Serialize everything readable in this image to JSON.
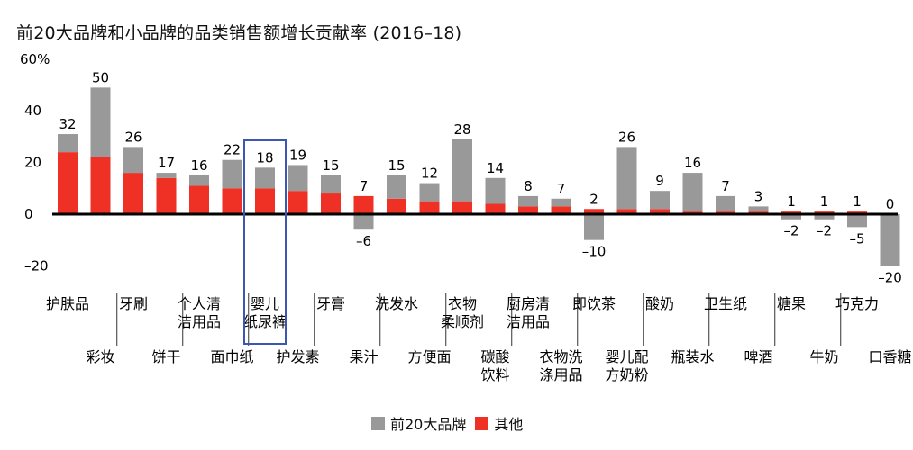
{
  "title": "前20大品牌和小品牌的品类销售额增长贡献率 (2016–18)",
  "colors": {
    "top20": "#999999",
    "others": "#ee3124",
    "highlight": "#3b56b3",
    "axis": "#000000"
  },
  "chart_data": {
    "type": "bar",
    "stacked": true,
    "title": "前20大品牌和小品牌的品类销售额增长贡献率 (2016–18)",
    "ylim": [
      -25,
      60
    ],
    "yticks": [
      -20,
      0,
      20,
      40,
      60
    ],
    "ytick_labels": [
      "–20",
      "0",
      "20",
      "40",
      "60%"
    ],
    "highlight_category": "婴儿纸尿裤",
    "categories": [
      "护肤品",
      "彩妆",
      "牙刷",
      "饼干",
      "个人清洁用品",
      "面巾纸",
      "婴儿纸尿裤",
      "护发素",
      "牙膏",
      "果汁",
      "洗发水",
      "方便面",
      "衣物柔顺剂",
      "碳酸饮料",
      "厨房清洁用品",
      "衣物洗涤用品",
      "即饮茶",
      "婴儿配方奶粉",
      "酸奶",
      "瓶装水",
      "卫生纸",
      "啤酒",
      "糖果",
      "牛奶",
      "巧克力",
      "口香糖"
    ],
    "category_labels": [
      [
        "护肤品"
      ],
      [
        "彩妆"
      ],
      [
        "牙刷"
      ],
      [
        "饼干"
      ],
      [
        "个人清",
        "洁用品"
      ],
      [
        "面巾纸"
      ],
      [
        "婴儿",
        "纸尿裤"
      ],
      [
        "护发素"
      ],
      [
        "牙膏"
      ],
      [
        "果汁"
      ],
      [
        "洗发水"
      ],
      [
        "方便面"
      ],
      [
        "衣物",
        "柔顺剂"
      ],
      [
        "碳酸",
        "饮料"
      ],
      [
        "厨房清",
        "洁用品"
      ],
      [
        "衣物洗",
        "涤用品"
      ],
      [
        "即饮茶"
      ],
      [
        "婴儿配",
        "方奶粉"
      ],
      [
        "酸奶"
      ],
      [
        "瓶装水"
      ],
      [
        "卫生纸"
      ],
      [
        "啤酒"
      ],
      [
        "糖果"
      ],
      [
        "牛奶"
      ],
      [
        "巧克力"
      ],
      [
        "口香糖"
      ]
    ],
    "series": [
      {
        "name": "前20大品牌",
        "values": [
          7,
          27,
          10,
          2,
          4,
          11,
          8,
          10,
          7,
          -6,
          9,
          7,
          24,
          10,
          4,
          3,
          -10,
          24,
          7,
          15,
          6,
          2,
          -2,
          -2,
          -5,
          -20
        ]
      },
      {
        "name": "其他",
        "values": [
          24,
          22,
          16,
          14,
          11,
          10,
          10,
          9,
          8,
          7,
          6,
          5,
          5,
          4,
          3,
          3,
          2,
          2,
          2,
          1,
          1,
          1,
          1,
          1,
          1,
          0
        ]
      }
    ],
    "totals": [
      "32",
      "50",
      "26",
      "17",
      "16",
      "22",
      "18",
      "19",
      "15",
      "7",
      "15",
      "12",
      "28",
      "14",
      "8",
      "7",
      "2",
      "26",
      "9",
      "16",
      "7",
      "3",
      "1",
      "1",
      "1",
      "0"
    ],
    "negative_labels": [
      "",
      "",
      "",
      "",
      "",
      "",
      "",
      "",
      "",
      "–6",
      "",
      "",
      "",
      "",
      "",
      "",
      "–10",
      "",
      "",
      "",
      "",
      "",
      "–2",
      "–2",
      "–5",
      "–20"
    ],
    "legend": [
      "前20大品牌",
      "其他"
    ]
  }
}
